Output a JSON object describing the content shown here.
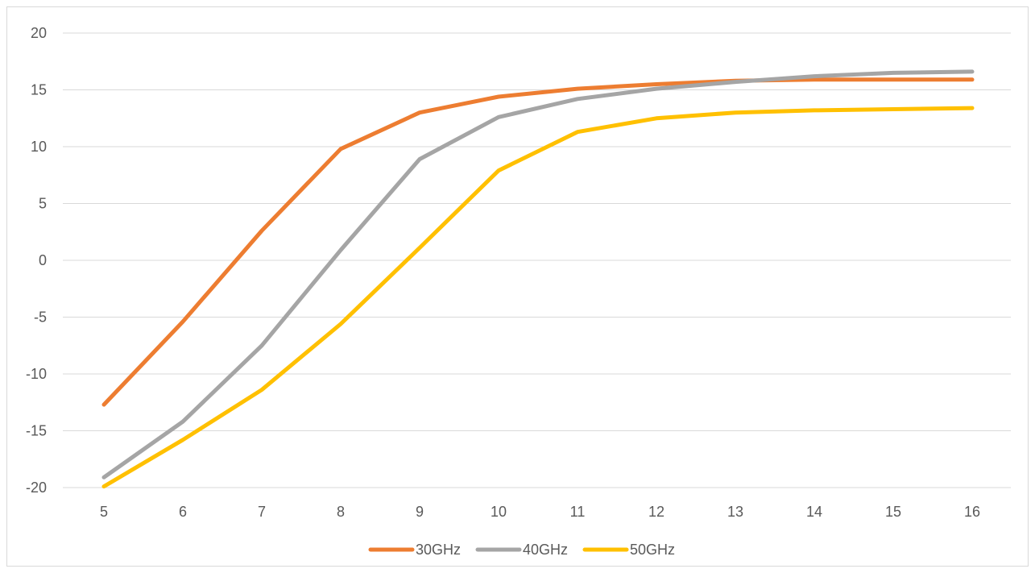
{
  "chart_data": {
    "type": "line",
    "title": "",
    "xlabel": "",
    "ylabel": "",
    "categories": [
      "5",
      "6",
      "7",
      "8",
      "9",
      "10",
      "11",
      "12",
      "13",
      "14",
      "15",
      "16"
    ],
    "ylim": [
      -20,
      20
    ],
    "yticks": [
      20,
      15,
      10,
      5,
      0,
      -5,
      -10,
      -15,
      -20
    ],
    "grid": true,
    "legend_position": "bottom",
    "series": [
      {
        "name": "30GHz",
        "color": "#ED7D31",
        "values": [
          -12.7,
          -5.4,
          2.6,
          9.8,
          13.0,
          14.4,
          15.1,
          15.5,
          15.8,
          15.9,
          15.9,
          15.9
        ]
      },
      {
        "name": "40GHz",
        "color": "#A5A5A5",
        "values": [
          -19.1,
          -14.2,
          -7.5,
          0.9,
          8.9,
          12.6,
          14.2,
          15.1,
          15.7,
          16.2,
          16.5,
          16.6
        ]
      },
      {
        "name": "50GHz",
        "color": "#FFC000",
        "values": [
          -19.9,
          -15.8,
          -11.4,
          -5.6,
          1.1,
          7.9,
          11.3,
          12.5,
          13.0,
          13.2,
          13.3,
          13.4
        ]
      }
    ]
  }
}
